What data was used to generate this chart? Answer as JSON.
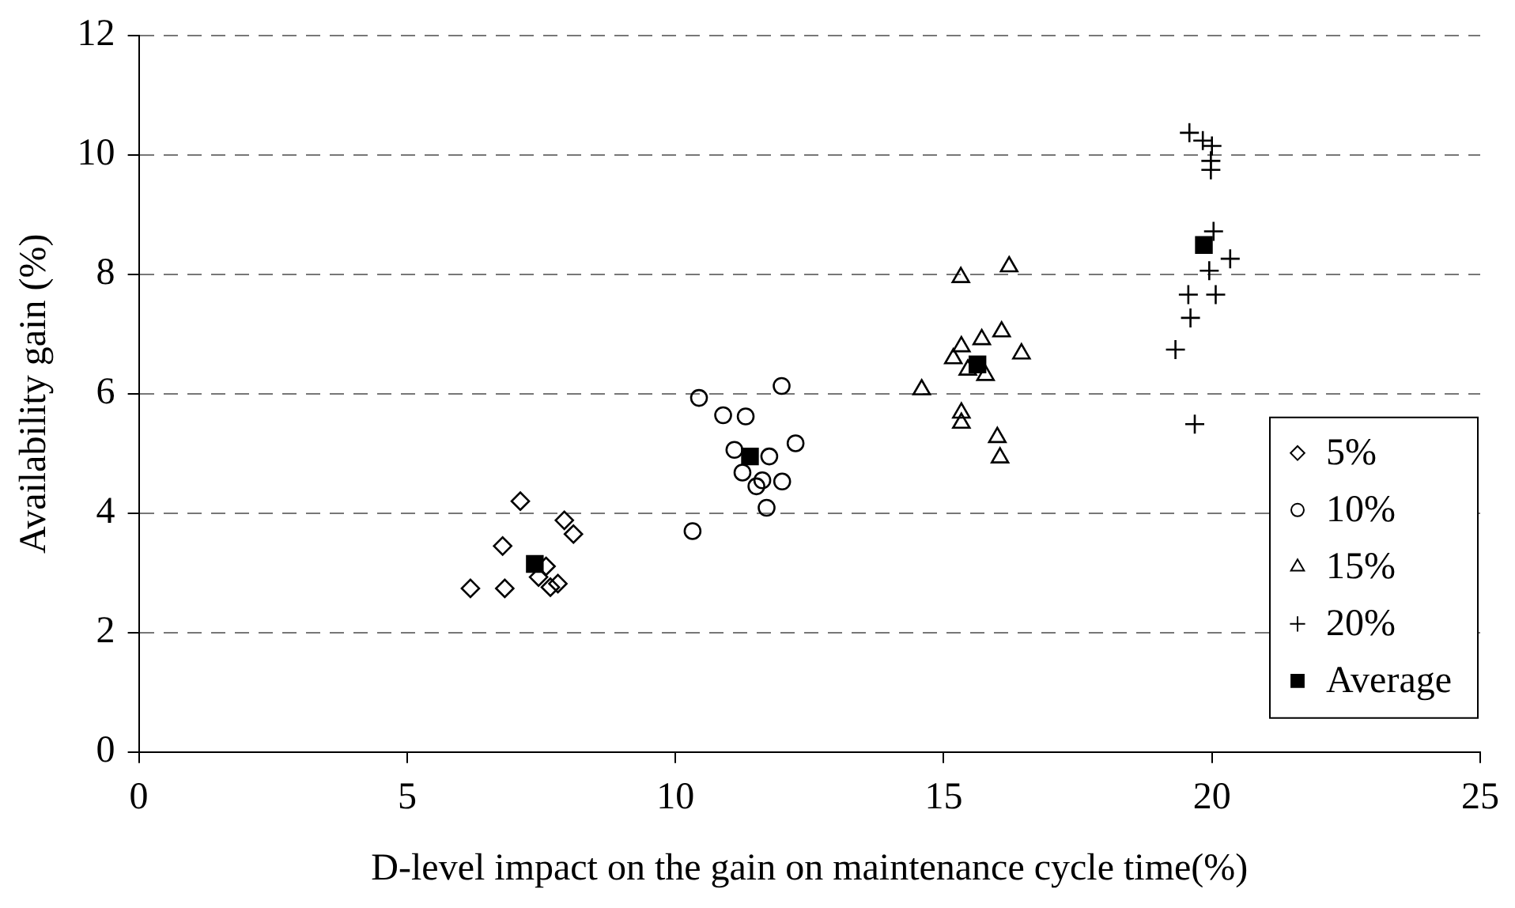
{
  "chart_data": {
    "type": "scatter",
    "xlabel": "D-level impact on the gain on maintenance cycle time(%)",
    "ylabel": "Availability gain (%)",
    "xlim": [
      0,
      25
    ],
    "xticks": [
      0,
      5,
      10,
      15,
      20,
      25
    ],
    "ylim": [
      0,
      12
    ],
    "yticks": [
      0,
      2,
      4,
      6,
      8,
      10,
      12
    ],
    "grid": "y",
    "legend": "bottom right",
    "series": [
      {
        "name": "5%",
        "color": "#000000",
        "marker": "diamond",
        "x": [
          7.11,
          7.93,
          8.1,
          6.78,
          6.18,
          6.82,
          7.59,
          7.45,
          7.67,
          7.81
        ],
        "values": [
          4.2,
          3.88,
          3.65,
          3.45,
          2.74,
          2.74,
          3.11,
          2.93,
          2.76,
          2.82
        ]
      },
      {
        "name": "10%",
        "color": "#000000",
        "marker": "circle",
        "x": [
          10.44,
          11.98,
          10.89,
          11.31,
          12.24,
          11.1,
          11.75,
          11.25,
          11.62,
          11.51,
          11.99,
          11.7,
          10.32
        ],
        "values": [
          5.93,
          6.13,
          5.64,
          5.62,
          5.17,
          5.06,
          4.95,
          4.68,
          4.55,
          4.45,
          4.53,
          4.09,
          3.7
        ]
      },
      {
        "name": "15%",
        "color": "#000000",
        "marker": "triangle",
        "x": [
          15.32,
          16.22,
          16.08,
          15.71,
          15.33,
          15.18,
          16.45,
          15.45,
          15.78,
          14.59,
          15.33,
          15.33,
          16.0,
          16.05
        ],
        "values": [
          7.95,
          8.13,
          7.04,
          6.91,
          6.79,
          6.59,
          6.67,
          6.4,
          6.31,
          6.07,
          5.68,
          5.51,
          5.27,
          4.93
        ]
      },
      {
        "name": "20%",
        "color": "#000000",
        "marker": "cross",
        "x": [
          19.58,
          19.83,
          20.0,
          19.98,
          19.98,
          20.03,
          20.34,
          19.95,
          19.56,
          20.07,
          19.6,
          19.32,
          19.68
        ],
        "values": [
          10.37,
          10.24,
          10.15,
          9.9,
          9.75,
          8.72,
          8.26,
          8.06,
          7.66,
          7.66,
          7.27,
          6.74,
          5.49
        ]
      },
      {
        "name": "Average",
        "color": "#000000",
        "marker": "square",
        "x": [
          7.38,
          11.39,
          15.63,
          19.85
        ],
        "values": [
          3.15,
          4.95,
          6.49,
          8.49
        ]
      }
    ]
  }
}
